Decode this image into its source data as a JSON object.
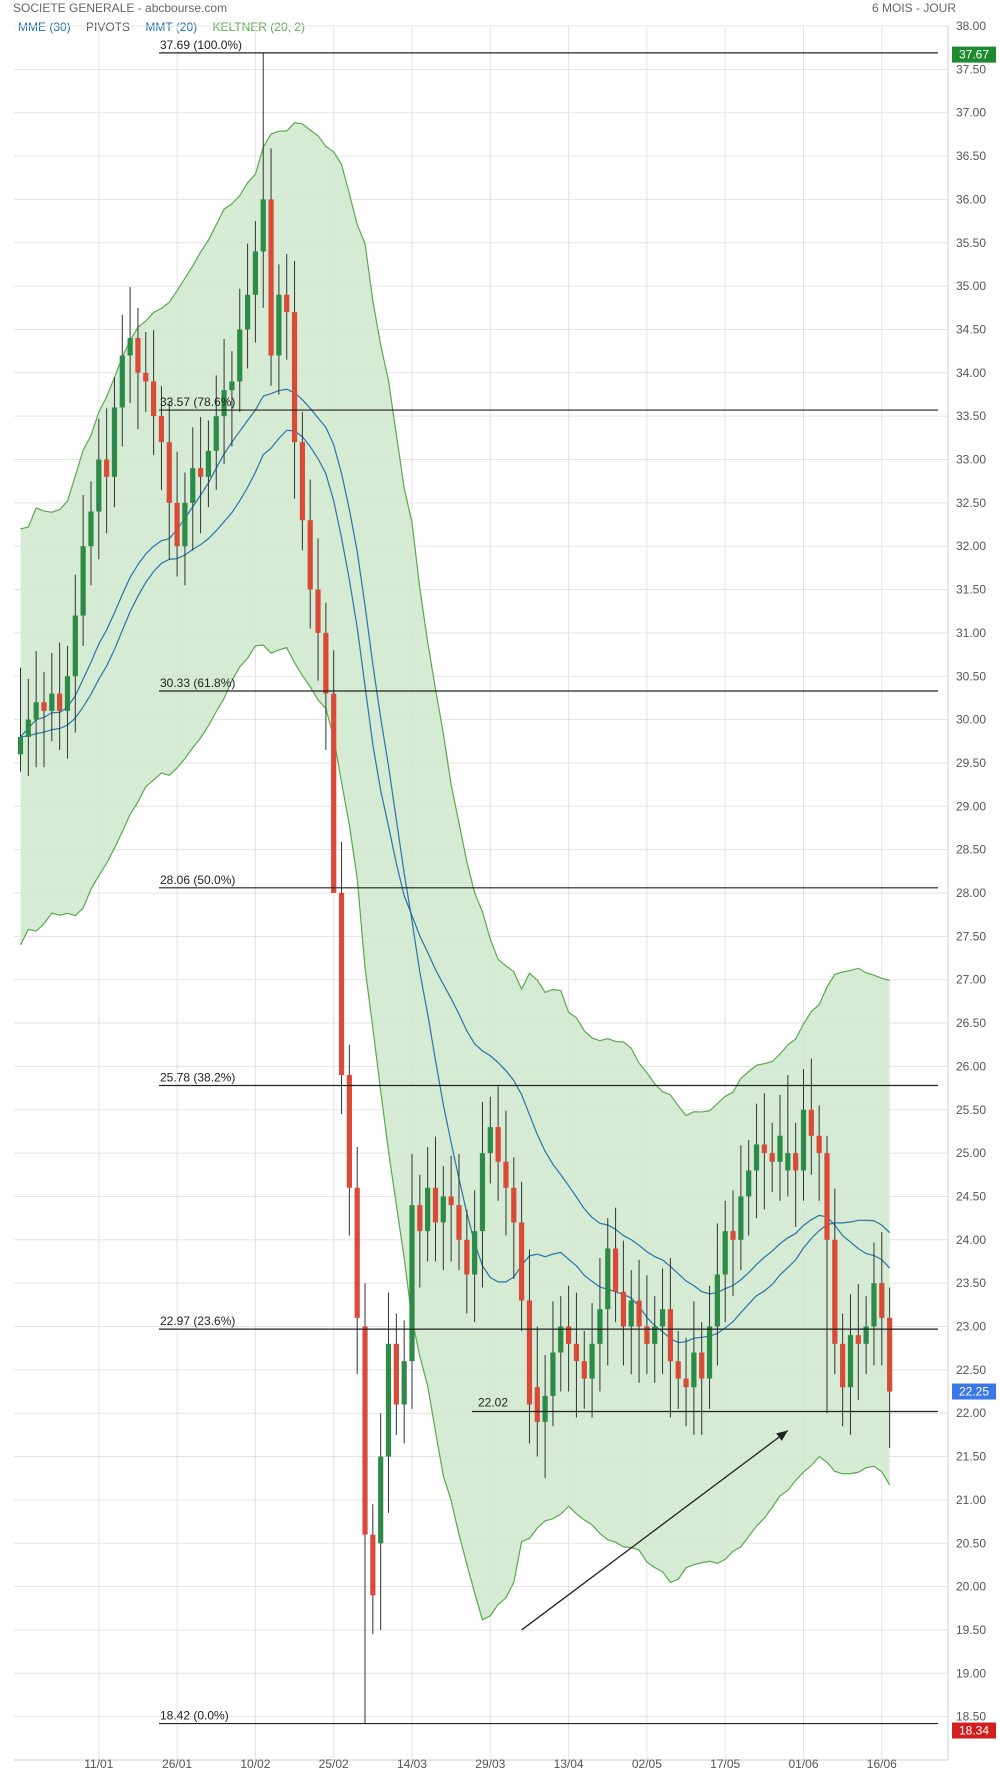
{
  "header": {
    "title": "SOCIETE GENERALE - abcbourse.com",
    "period": "6 MOIS - JOUR"
  },
  "legend": [
    {
      "label": "MME (30)",
      "color": "#1f6fb8"
    },
    {
      "label": "PIVOTS",
      "color": "#555555"
    },
    {
      "label": "MMT (20)",
      "color": "#1f6fb8"
    },
    {
      "label": "KELTNER (20, 2)",
      "color": "#5aa84f"
    }
  ],
  "colors": {
    "up": "#2e8b47",
    "down": "#d94a38",
    "band_fill": "#cfe8cc",
    "band_line": "#5aa84f",
    "ma": "#2a74a8",
    "grid": "#e3e3e3",
    "badge_top": "#1e8a2e",
    "badge_last": "#3b78e7",
    "badge_low": "#d11f1f"
  },
  "chart_data": {
    "type": "candlestick",
    "y_range": [
      18.0,
      38.0
    ],
    "y_ticks": [
      "18.50",
      "19.00",
      "19.50",
      "20.00",
      "20.50",
      "21.00",
      "21.50",
      "22.00",
      "22.50",
      "23.00",
      "23.50",
      "24.00",
      "24.50",
      "25.00",
      "25.50",
      "26.00",
      "26.50",
      "27.00",
      "27.50",
      "28.00",
      "28.50",
      "29.00",
      "29.50",
      "30.00",
      "30.50",
      "31.00",
      "31.50",
      "32.00",
      "32.50",
      "33.00",
      "33.50",
      "34.00",
      "34.50",
      "35.00",
      "35.50",
      "36.00",
      "36.50",
      "37.00",
      "37.50",
      "38.00"
    ],
    "x_ticks": [
      {
        "label": "11/01",
        "i": 10
      },
      {
        "label": "26/01",
        "i": 20
      },
      {
        "label": "10/02",
        "i": 30
      },
      {
        "label": "25/02",
        "i": 40
      },
      {
        "label": "14/03",
        "i": 50
      },
      {
        "label": "29/03",
        "i": 60
      },
      {
        "label": "13/04",
        "i": 70
      },
      {
        "label": "02/05",
        "i": 80
      },
      {
        "label": "17/05",
        "i": 90
      },
      {
        "label": "01/06",
        "i": 100
      },
      {
        "label": "16/06",
        "i": 110
      }
    ],
    "fib_levels": [
      {
        "label": "37.69  (100.0%)",
        "value": 37.69
      },
      {
        "label": "33.57  (78.6%)",
        "value": 33.57
      },
      {
        "label": "30.33  (61.8%)",
        "value": 30.33
      },
      {
        "label": "28.06  (50.0%)",
        "value": 28.06
      },
      {
        "label": "25.78  (38.2%)",
        "value": 25.78
      },
      {
        "label": "22.97  (23.6%)",
        "value": 22.97
      },
      {
        "label": "18.42  (0.0%)",
        "value": 18.42
      }
    ],
    "support_line": {
      "label": "22.02",
      "value": 22.02
    },
    "badges": [
      {
        "label": "37.67",
        "value": 37.67,
        "color": "#1e8a2e"
      },
      {
        "label": "22.25",
        "value": 22.25,
        "color": "#3b78e7"
      },
      {
        "label": "18.34",
        "value": 18.34,
        "color": "#d11f1f"
      }
    ],
    "arrow": {
      "from": {
        "i": 64,
        "v": 19.5
      },
      "to": {
        "i": 98,
        "v": 21.8
      }
    },
    "closes": [
      29.8,
      30.0,
      30.2,
      30.1,
      30.3,
      30.1,
      30.5,
      31.2,
      32.0,
      32.4,
      33.0,
      32.8,
      33.6,
      34.2,
      34.4,
      34.0,
      33.9,
      33.5,
      33.2,
      32.5,
      32.0,
      32.5,
      32.9,
      32.8,
      33.1,
      33.5,
      33.8,
      33.9,
      34.5,
      34.9,
      35.4,
      36.0,
      34.2,
      34.9,
      34.7,
      33.2,
      32.3,
      31.5,
      31.0,
      30.3,
      28.0,
      25.9,
      24.6,
      23.1,
      20.6,
      19.9,
      21.5,
      22.8,
      22.1,
      22.6,
      24.4,
      24.1,
      24.6,
      24.2,
      24.5,
      24.4,
      24.0,
      23.6,
      24.1,
      25.0,
      25.3,
      24.9,
      24.6,
      24.2,
      23.3,
      22.1,
      21.9,
      22.2,
      22.7,
      23.0,
      22.8,
      22.6,
      22.4,
      22.8,
      23.2,
      23.9,
      23.4,
      23.0,
      23.3,
      23.0,
      22.8,
      23.0,
      23.2,
      22.6,
      22.4,
      22.3,
      22.7,
      22.4,
      23.0,
      23.6,
      24.1,
      24.0,
      24.5,
      24.8,
      25.1,
      25.0,
      24.9,
      25.2,
      25.0,
      24.8,
      25.5,
      25.2,
      25.0,
      24.0,
      22.8,
      22.3,
      22.9,
      22.8,
      23.0,
      23.5,
      23.1,
      22.25
    ],
    "ranges": [
      {
        "start": 0,
        "o": 29.6,
        "h": 30.6,
        "l": 29.4
      },
      {
        "start": 40,
        "o": 30.3,
        "h": 30.8,
        "l": 28.0
      },
      {
        "start": 44,
        "o": 23.0,
        "h": 23.5,
        "l": 18.42
      },
      {
        "start": 46,
        "o": 20.5,
        "h": 22.0,
        "l": 19.5
      },
      {
        "start": 66,
        "o": 22.3,
        "h": 23.0,
        "l": 21.5
      },
      {
        "start": 98,
        "o": 24.8,
        "h": 25.9,
        "l": 24.5
      },
      {
        "start": 103,
        "o": 25.0,
        "h": 25.2,
        "l": 22.0
      }
    ]
  }
}
